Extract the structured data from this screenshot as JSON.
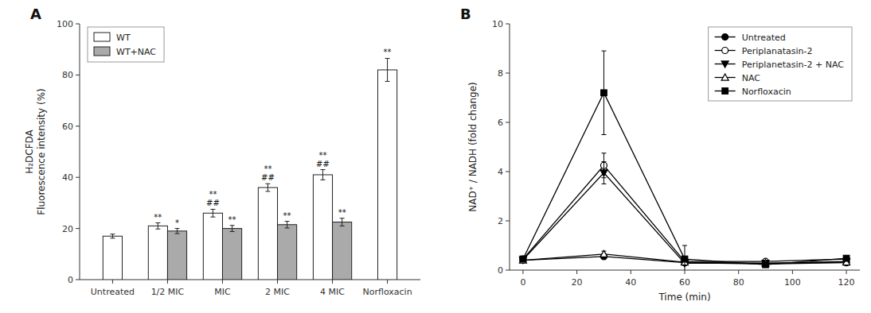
{
  "chart_data": [
    {
      "type": "bar",
      "title": "A",
      "categories": [
        "Untreated",
        "1/2 MIC",
        "MIC",
        "2 MIC",
        "4 MIC",
        "Norfloxacin"
      ],
      "series": [
        {
          "name": "WT",
          "color": "#ffffff",
          "values": [
            17,
            21,
            26,
            36,
            41,
            82
          ],
          "errors": [
            0.8,
            1.2,
            1.5,
            1.5,
            2.0,
            4.5
          ],
          "annotations": [
            [],
            [
              "**"
            ],
            [
              "##",
              "**"
            ],
            [
              "##",
              "**"
            ],
            [
              "##",
              "**"
            ],
            [
              "**"
            ]
          ]
        },
        {
          "name": "WT+NAC",
          "color": "#aaaaaa",
          "values": [
            null,
            19,
            20,
            21.5,
            22.5,
            null
          ],
          "errors": [
            null,
            1.0,
            1.2,
            1.3,
            1.5,
            null
          ],
          "annotations": [
            [],
            [
              "*"
            ],
            [
              "**"
            ],
            [
              "**"
            ],
            [
              "**"
            ],
            []
          ]
        }
      ],
      "y_label": "H₂DCFDA\nFluorescence intensity (%)",
      "ylim": [
        0,
        100
      ],
      "yticks": [
        0,
        20,
        40,
        60,
        80,
        100
      ],
      "legend": "upper left",
      "grid": false
    },
    {
      "type": "line",
      "title": "B",
      "x": [
        0,
        30,
        60,
        90,
        120
      ],
      "series": [
        {
          "name": "Untreated",
          "color": "#000000",
          "marker": "circle",
          "line_style": "solid",
          "values": [
            0.4,
            0.55,
            0.3,
            0.25,
            0.3
          ],
          "errors": [
            0.05,
            0.08,
            0.05,
            0.05,
            0.05
          ]
        },
        {
          "name": "Periplanatasin-2",
          "color": "#000000",
          "marker": "open-circle",
          "line_style": "solid",
          "values": [
            0.45,
            4.25,
            0.35,
            0.35,
            0.45
          ],
          "errors": [
            0.08,
            0.5,
            0.1,
            0.08,
            0.08
          ]
        },
        {
          "name": "Periplanetasin-2 + NAC",
          "color": "#000000",
          "marker": "triangle-down",
          "line_style": "solid",
          "values": [
            0.42,
            3.95,
            0.28,
            0.28,
            0.35
          ],
          "errors": [
            0.07,
            0.45,
            0.08,
            0.07,
            0.07
          ]
        },
        {
          "name": "NAC",
          "color": "#000000",
          "marker": "open-triangle-up",
          "line_style": "solid",
          "values": [
            0.4,
            0.65,
            0.32,
            0.28,
            0.32
          ],
          "errors": [
            0.05,
            0.12,
            0.06,
            0.05,
            0.05
          ]
        },
        {
          "name": "Norfloxacin",
          "color": "#000000",
          "marker": "square",
          "line_style": "solid",
          "values": [
            0.45,
            7.2,
            0.45,
            0.22,
            0.48
          ],
          "errors": [
            0.08,
            1.7,
            0.55,
            0.08,
            0.08
          ]
        }
      ],
      "x_label": "Time (min)",
      "y_label": "NAD⁺ / NADH (fold change)",
      "xlim": [
        -5,
        125
      ],
      "xticks": [
        0,
        20,
        40,
        60,
        80,
        100,
        120
      ],
      "ylim": [
        0,
        10
      ],
      "yticks": [
        0,
        2,
        4,
        6,
        8,
        10
      ],
      "legend": "upper right",
      "grid": false
    }
  ]
}
